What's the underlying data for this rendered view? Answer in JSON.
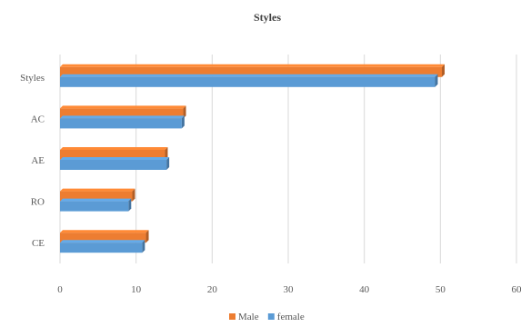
{
  "chart_data": {
    "type": "bar",
    "orientation": "horizontal",
    "title": "Styles",
    "categories": [
      "Styles",
      "AC",
      "AE",
      "RO",
      "CE"
    ],
    "series": [
      {
        "name": "Male",
        "color": "#ED7D31",
        "values": [
          50.2,
          16.2,
          13.8,
          9.5,
          11.3
        ]
      },
      {
        "name": "female",
        "color": "#5B9BD5",
        "values": [
          49.3,
          16.0,
          14.0,
          9.0,
          10.8
        ]
      }
    ],
    "xlim": [
      0,
      60
    ],
    "xticks": [
      "0",
      "10",
      "20",
      "30",
      "40",
      "50",
      "60"
    ],
    "grid": true,
    "legend_position": "bottom"
  }
}
